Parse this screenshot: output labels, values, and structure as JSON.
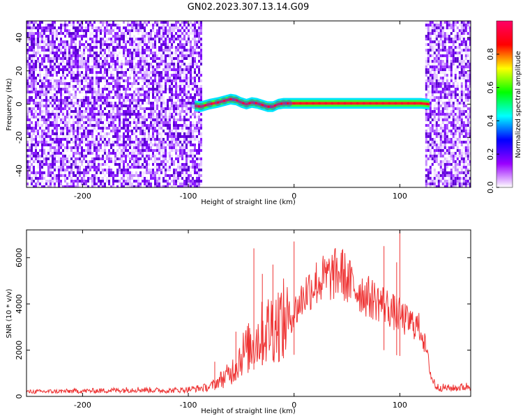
{
  "title": "GN02.2023.307.13.14.G09",
  "chart_data": [
    {
      "type": "heatmap",
      "xlabel": "Height of straight line (km)",
      "ylabel": "Frequency (Hz)",
      "xlim": [
        -253,
        167
      ],
      "ylim": [
        -50,
        50
      ],
      "xticks": [
        -200,
        -100,
        0,
        100
      ],
      "yticks": [
        -40,
        -20,
        0,
        20,
        40
      ],
      "noise_regions": [
        [
          -253,
          -88
        ],
        [
          124,
          167
        ]
      ],
      "signal_trace": {
        "x": [
          -94,
          -88,
          -80,
          -72,
          -66,
          -60,
          -55,
          -50,
          -45,
          -40,
          -35,
          -30,
          -25,
          -20,
          -15,
          -10,
          -5,
          0,
          20,
          40,
          60,
          80,
          100,
          120,
          128
        ],
        "y": [
          -1,
          -1.5,
          0,
          1,
          2,
          3,
          2.5,
          1,
          0,
          1,
          0.5,
          -0.5,
          -1.5,
          -1.5,
          0,
          0.5,
          0.5,
          0.5,
          0.5,
          0.5,
          0.5,
          0.5,
          0.5,
          0.5,
          0
        ]
      },
      "colorbar": {
        "label": "Normalized spectral amplitude",
        "range": [
          0,
          1
        ],
        "ticks": [
          "0.0",
          "0.2",
          "0.4",
          "0.6",
          "0.8"
        ],
        "colors": [
          "#ffffff",
          "#9900ff",
          "#0000ff",
          "#00ffff",
          "#00ff00",
          "#ffff00",
          "#ff0000",
          "#ff0066"
        ]
      },
      "grid": false
    },
    {
      "type": "line",
      "xlabel": "Height of straight line (km)",
      "ylabel": "SNR (10 * v/v)",
      "xlim": [
        -253,
        167
      ],
      "ylim": [
        0,
        7200
      ],
      "xticks": [
        -200,
        -100,
        0,
        100
      ],
      "yticks": [
        0,
        2000,
        4000,
        6000
      ],
      "grid": false,
      "series": [
        {
          "color": "#ee3333",
          "x": [
            -253,
            -220,
            -180,
            -150,
            -120,
            -100,
            -80,
            -70,
            -60,
            -55,
            -50,
            -45,
            -40,
            -35,
            -30,
            -25,
            -20,
            -15,
            -10,
            -5,
            0,
            5,
            10,
            15,
            20,
            25,
            30,
            35,
            40,
            45,
            50,
            55,
            60,
            65,
            70,
            75,
            80,
            85,
            90,
            95,
            100,
            105,
            110,
            115,
            120,
            125,
            130,
            135,
            150,
            167
          ],
          "y": [
            200,
            220,
            250,
            300,
            250,
            300,
            400,
            700,
            1000,
            1400,
            1800,
            2000,
            2200,
            2500,
            2700,
            2900,
            3100,
            3200,
            3300,
            3400,
            3600,
            4000,
            4400,
            4700,
            4900,
            5000,
            5100,
            5200,
            5300,
            5400,
            5000,
            4800,
            4600,
            4500,
            4300,
            4200,
            4100,
            4000,
            3800,
            3600,
            3500,
            3300,
            3200,
            3100,
            2900,
            2000,
            800,
            400,
            350,
            450
          ],
          "spikes": [
            [
              -75,
              1500
            ],
            [
              -55,
              2800
            ],
            [
              -38,
              6400
            ],
            [
              -30,
              5300
            ],
            [
              -20,
              5700
            ],
            [
              -10,
              4600
            ],
            [
              0,
              6700
            ],
            [
              85,
              6500
            ],
            [
              97,
              5800
            ],
            [
              100,
              7200
            ]
          ]
        }
      ]
    }
  ]
}
